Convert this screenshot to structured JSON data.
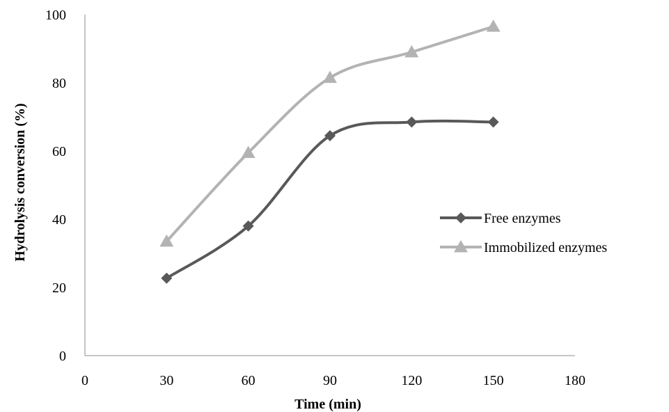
{
  "chart_data": {
    "type": "line",
    "title": "",
    "xlabel": "Time (min)",
    "ylabel": "Hydrolysis conversion (%)",
    "xlim": [
      0,
      180
    ],
    "ylim": [
      0,
      100
    ],
    "x_ticks": [
      "0",
      "30",
      "60",
      "90",
      "120",
      "150",
      "180"
    ],
    "y_ticks": [
      "0",
      "20",
      "40",
      "60",
      "80",
      "100"
    ],
    "grid": false,
    "legend_position": "right",
    "smooth": true,
    "x": [
      30,
      60,
      90,
      120,
      150
    ],
    "series": [
      {
        "name": "Free enzymes",
        "values": [
          22.7,
          38.0,
          64.5,
          68.5,
          68.5
        ],
        "color": "#595959",
        "marker": "diamond"
      },
      {
        "name": "Immobilized enzymes",
        "values": [
          33.5,
          59.5,
          81.5,
          89.0,
          96.5
        ],
        "color": "#b3b3b3",
        "marker": "triangle"
      }
    ]
  }
}
